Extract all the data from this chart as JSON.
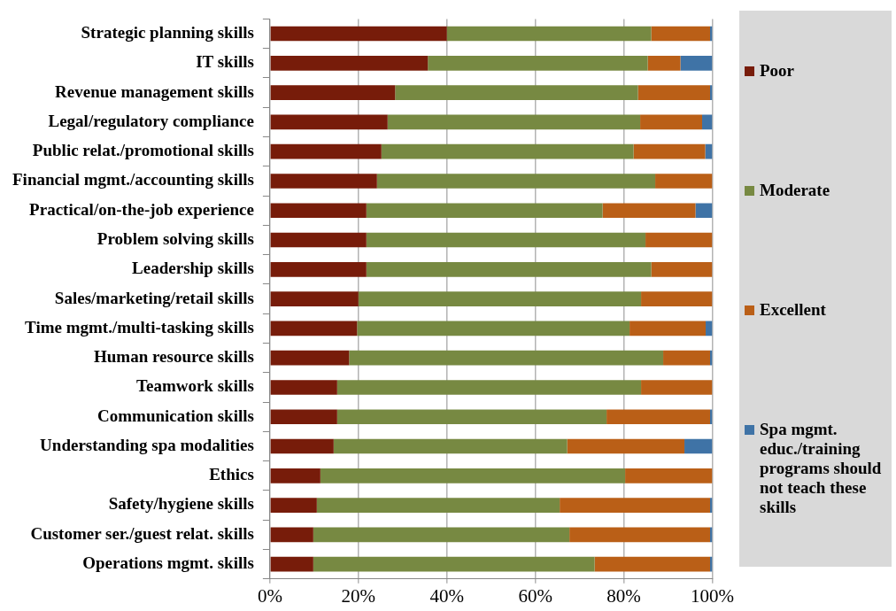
{
  "chart_data": {
    "type": "bar",
    "orientation": "horizontal",
    "stacked": true,
    "categories": [
      "Strategic planning skills",
      "IT skills",
      "Revenue management skills",
      "Legal/regulatory compliance",
      "Public relat./promotional skills",
      "Financial mgmt./accounting skills",
      "Practical/on-the-job experience",
      "Problem solving skills",
      "Leadership skills",
      "Sales/marketing/retail skills",
      "Time mgmt./multi-tasking skills",
      "Human resource skills",
      "Teamwork skills",
      "Communication skills",
      "Understanding spa modalities",
      "Ethics",
      "Safety/hygiene skills",
      "Customer ser./guest relat. skills",
      "Operations mgmt. skills"
    ],
    "series": [
      {
        "name": "Poor",
        "color": "#771c0a",
        "values": [
          40,
          35.7,
          28.3,
          26.6,
          25.2,
          24.2,
          21.8,
          21.8,
          21.8,
          20,
          19.7,
          17.9,
          15.2,
          15.2,
          14.4,
          11.4,
          10.6,
          9.8,
          9.8
        ]
      },
      {
        "name": "Moderate",
        "color": "#778942",
        "values": [
          46.2,
          49.7,
          54.9,
          57.1,
          57,
          62.9,
          53.4,
          63.1,
          64.4,
          63.9,
          61.6,
          71,
          68.7,
          60.9,
          52.8,
          68.9,
          54.9,
          57.9,
          63.6
        ]
      },
      {
        "name": "Excellent",
        "color": "#ba5f17",
        "values": [
          13.3,
          7.4,
          16.3,
          14,
          16.2,
          12.9,
          21,
          15.1,
          13.8,
          16.1,
          17.2,
          10.6,
          16.1,
          23.4,
          26.5,
          19.7,
          34,
          31.8,
          26.1
        ]
      },
      {
        "name": "Spa mgmt. educ./training programs should not teach these skills",
        "color": "#3f73a6",
        "values": [
          0.5,
          7.2,
          0.5,
          2.3,
          1.6,
          0,
          3.8,
          0,
          0,
          0,
          1.5,
          0.5,
          0,
          0.5,
          6.3,
          0,
          0.5,
          0.5,
          0.5
        ]
      }
    ],
    "xlim": [
      0,
      100
    ],
    "xticks": [
      {
        "value": 0,
        "label": "0%"
      },
      {
        "value": 20,
        "label": "20%"
      },
      {
        "value": 40,
        "label": "40%"
      },
      {
        "value": 60,
        "label": "60%"
      },
      {
        "value": 80,
        "label": "80%"
      },
      {
        "value": 100,
        "label": "100%"
      }
    ],
    "grid": "x",
    "legend": "right"
  }
}
